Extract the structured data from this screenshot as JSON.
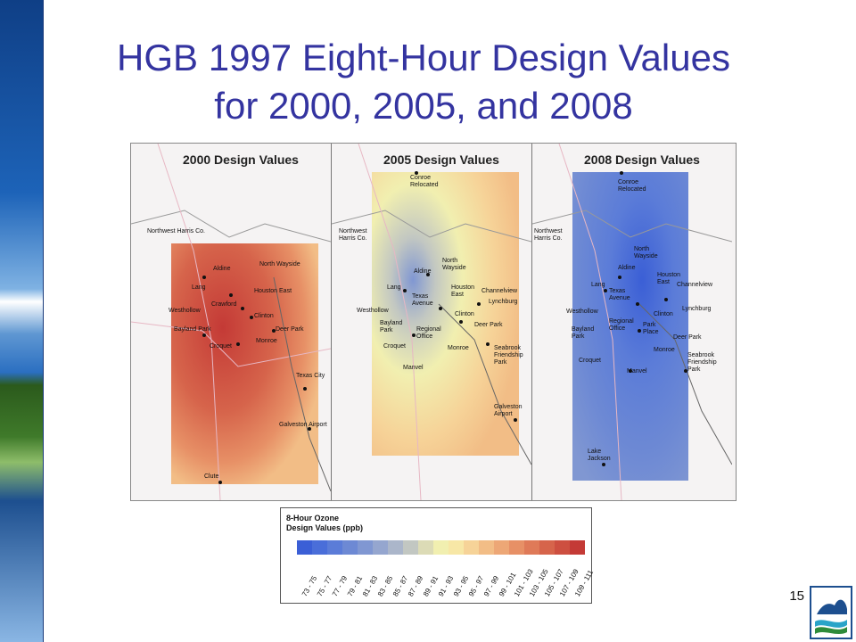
{
  "slide": {
    "title_line1": "HGB 1997 Eight-Hour Design Values",
    "title_line2": "for 2000, 2005, and 2008",
    "page_number": "15"
  },
  "maps": [
    {
      "title": "2000 Design Values",
      "sites": [
        "Northwest Harris Co.",
        "Aldine",
        "North Wayside",
        "Lang",
        "Houston East",
        "Crawford",
        "Westhollow",
        "Clinton",
        "Bayland Park",
        "Deer Park",
        "Croquet",
        "Monroe",
        "Texas City",
        "Galveston Airport",
        "Clute"
      ]
    },
    {
      "title": "2005 Design Values",
      "sites": [
        "Conroe Relocated",
        "Northwest Harris Co.",
        "North Wayside",
        "Aldine",
        "Lang",
        "Houston East",
        "Channelview",
        "Texas Avenue",
        "Clinton",
        "Lynchburg",
        "Westhollow",
        "Bayland Park",
        "Regional Office",
        "Deer Park",
        "Croquet",
        "Monroe",
        "Seabrook Friendship Park",
        "Manvel",
        "Galveston Airport"
      ]
    },
    {
      "title": "2008 Design Values",
      "sites": [
        "Conroe Relocated",
        "Northwest Harris Co.",
        "North Wayside",
        "Aldine",
        "Houston East",
        "Channelview",
        "Lang",
        "Texas Avenue",
        "Clinton",
        "Lynchburg",
        "Westhollow",
        "Regional Office",
        "Park Place",
        "Bayland Park",
        "Deer Park",
        "Croquet",
        "Monroe",
        "Seabrook Friendship Park",
        "Manvel",
        "Lake Jackson"
      ]
    }
  ],
  "legend": {
    "title_line1": "8-Hour Ozone",
    "title_line2": "Design Values (ppb)",
    "bins": [
      {
        "label": "73 - 75",
        "color": "#3b5fd6"
      },
      {
        "label": "75 - 77",
        "color": "#4a6ed9"
      },
      {
        "label": "77 - 79",
        "color": "#5b7cd8"
      },
      {
        "label": "79 - 81",
        "color": "#6d89d4"
      },
      {
        "label": "81 - 83",
        "color": "#8097d2"
      },
      {
        "label": "83 - 85",
        "color": "#95a6cf"
      },
      {
        "label": "85 - 87",
        "color": "#abb6ca"
      },
      {
        "label": "87 - 89",
        "color": "#c2c7c2"
      },
      {
        "label": "89 - 91",
        "color": "#dcdbb6"
      },
      {
        "label": "91 - 93",
        "color": "#f1efb0"
      },
      {
        "label": "93 - 95",
        "color": "#f7e7a6"
      },
      {
        "label": "95 - 97",
        "color": "#f6d398"
      },
      {
        "label": "97 - 99",
        "color": "#f2bd86"
      },
      {
        "label": "99 - 101",
        "color": "#eda776"
      },
      {
        "label": "101 - 103",
        "color": "#e79066"
      },
      {
        "label": "103 - 105",
        "color": "#df7a58"
      },
      {
        "label": "105 - 107",
        "color": "#d6644b"
      },
      {
        "label": "107 - 109",
        "color": "#cd4f40"
      },
      {
        "label": "109 - 111",
        "color": "#c43a36"
      }
    ]
  },
  "icons": {
    "logo": "tceq-logo-icon"
  }
}
